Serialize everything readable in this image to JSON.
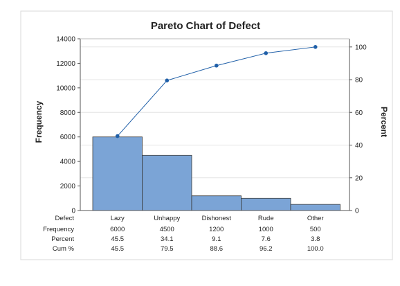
{
  "chart_data": {
    "type": "pareto",
    "title": "Pareto Chart of Defect",
    "ylabel_left": "Frequency",
    "ylabel_right": "Percent",
    "categories": [
      "Lazy",
      "Unhappy",
      "Dishonest",
      "Rude",
      "Other"
    ],
    "frequency": [
      6000,
      4500,
      1200,
      1000,
      500
    ],
    "cumulative_percent": [
      45.5,
      79.5,
      88.6,
      96.2,
      100.0
    ],
    "ylim_left": [
      0,
      14000
    ],
    "yticks_left": [
      "0",
      "2000",
      "4000",
      "6000",
      "8000",
      "10000",
      "12000",
      "14000"
    ],
    "ylim_right": [
      0,
      105
    ],
    "yticks_right": [
      "0",
      "20",
      "40",
      "60",
      "80",
      "100"
    ],
    "grid": true,
    "colors": {
      "bar_fill": "#7ba4d6",
      "bar_stroke": "#3a3a3a",
      "line": "#1f5fa8",
      "grid": "#e4e4e4"
    },
    "table": {
      "row_labels": [
        "Defect",
        "Frequency",
        "Percent",
        "Cum %"
      ],
      "defect": [
        "Lazy",
        "Unhappy",
        "Dishonest",
        "Rude",
        "Other"
      ],
      "frequency": [
        "6000",
        "4500",
        "1200",
        "1000",
        "500"
      ],
      "percent": [
        "45.5",
        "34.1",
        "9.1",
        "7.6",
        "3.8"
      ],
      "cum_percent": [
        "45.5",
        "79.5",
        "88.6",
        "96.2",
        "100.0"
      ]
    }
  }
}
